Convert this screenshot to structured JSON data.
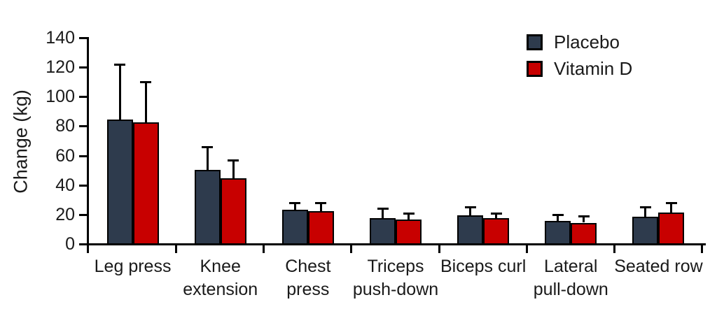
{
  "chart_data": {
    "type": "bar",
    "title": "",
    "xlabel": "",
    "ylabel": "Change (kg)",
    "ylim": [
      0,
      140
    ],
    "yticks": [
      0,
      20,
      40,
      60,
      80,
      100,
      120,
      140
    ],
    "grid": false,
    "legend_position": "top-right",
    "error_bars": "upper-only",
    "categories": [
      "Leg press",
      "Knee extension",
      "Chest press",
      "Triceps push-down",
      "Biceps curl",
      "Lateral pull-down",
      "Seated row"
    ],
    "category_label_lines": [
      [
        "Leg press"
      ],
      [
        "Knee",
        "extension"
      ],
      [
        "Chest",
        "press"
      ],
      [
        "Triceps",
        "push-down"
      ],
      [
        "Biceps curl"
      ],
      [
        "Lateral",
        "pull-down"
      ],
      [
        "Seated row"
      ]
    ],
    "series": [
      {
        "name": "Placebo",
        "color": "#2e3b4d",
        "values": [
          84,
          50,
          23,
          17,
          19,
          15,
          18
        ],
        "error_upper": [
          38,
          16,
          5,
          7,
          6,
          5,
          7
        ]
      },
      {
        "name": "Vitamin D",
        "color": "#c80000",
        "values": [
          82,
          44,
          22,
          16,
          17,
          14,
          21
        ],
        "error_upper": [
          28,
          13,
          6,
          5,
          4,
          5,
          7
        ]
      }
    ],
    "axis_color": "#000000",
    "bar_border_color": "#000000"
  },
  "legend": {
    "items": [
      {
        "label": "Placebo",
        "color": "#2e3b4d"
      },
      {
        "label": "Vitamin D",
        "color": "#c80000"
      }
    ]
  }
}
